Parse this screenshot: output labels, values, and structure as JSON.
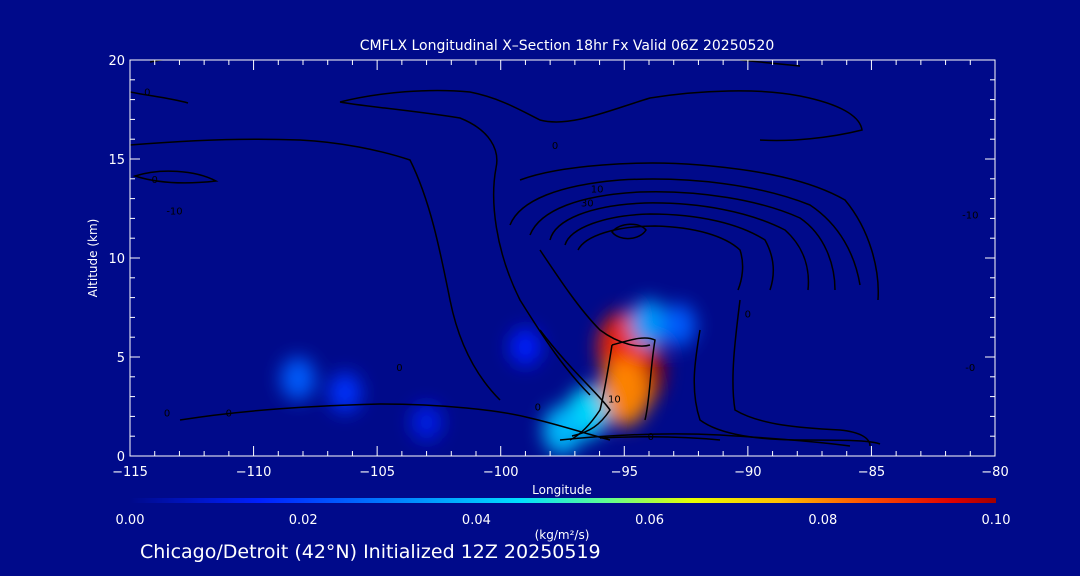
{
  "chart_data": {
    "type": "heatmap",
    "title": "CMFLX Longitudinal X–Section 18hr  Fx Valid 06Z 20250520",
    "xlabel": "Longitude",
    "ylabel": "Altitude (km)",
    "xlim": [
      -115,
      -80
    ],
    "ylim": [
      0,
      20
    ],
    "x_ticks": [
      -115,
      -110,
      -105,
      -100,
      -95,
      -90,
      -85,
      -80
    ],
    "x_tick_labels": [
      "−115",
      "−110",
      "−105",
      "−100",
      "−95",
      "−90",
      "−85",
      "−80"
    ],
    "y_ticks": [
      0,
      5,
      10,
      15,
      20
    ],
    "y_tick_labels": [
      "0",
      "5",
      "10",
      "15",
      "20"
    ],
    "colorbar": {
      "min": 0.0,
      "max": 0.1,
      "ticks": [
        0.0,
        0.02,
        0.04,
        0.06,
        0.08,
        0.1
      ],
      "tick_labels": [
        "0.00",
        "0.02",
        "0.04",
        "0.06",
        "0.08",
        "0.10"
      ],
      "units": "(kg/m²/s)"
    },
    "flux_maxima": [
      {
        "lon": -94.5,
        "alt": 4.3,
        "value": 0.1
      },
      {
        "lon": -95.0,
        "alt": 5.5,
        "value": 0.09
      },
      {
        "lon": -95.0,
        "alt": 3.2,
        "value": 0.08
      },
      {
        "lon": -94.0,
        "alt": 6.7,
        "value": 0.035
      },
      {
        "lon": -92.8,
        "alt": 6.6,
        "value": 0.025
      },
      {
        "lon": -96.5,
        "alt": 2.2,
        "value": 0.045
      },
      {
        "lon": -97.5,
        "alt": 1.3,
        "value": 0.04
      },
      {
        "lon": -99.0,
        "alt": 5.5,
        "value": 0.015
      },
      {
        "lon": -108.2,
        "alt": 3.9,
        "value": 0.025
      },
      {
        "lon": -106.3,
        "alt": 3.2,
        "value": 0.018
      },
      {
        "lon": -103.0,
        "alt": 1.7,
        "value": 0.012
      }
    ],
    "contour_labels": [
      {
        "text": "0",
        "lon": -114.3,
        "alt": 18.2
      },
      {
        "text": "0",
        "lon": -114.0,
        "alt": 13.8
      },
      {
        "text": "-10",
        "lon": -113.2,
        "alt": 12.2
      },
      {
        "text": "0",
        "lon": -113.5,
        "alt": 2.0
      },
      {
        "text": "0",
        "lon": -111.0,
        "alt": 2.0
      },
      {
        "text": "0",
        "lon": -97.8,
        "alt": 15.5
      },
      {
        "text": "10",
        "lon": -96.1,
        "alt": 13.3
      },
      {
        "text": "30",
        "lon": -96.5,
        "alt": 12.6
      },
      {
        "text": "0",
        "lon": -104.1,
        "alt": 4.3
      },
      {
        "text": "10",
        "lon": -95.4,
        "alt": 2.7
      },
      {
        "text": "0",
        "lon": -98.5,
        "alt": 2.3
      },
      {
        "text": "-0",
        "lon": -94.0,
        "alt": 0.8
      },
      {
        "text": "0",
        "lon": -90.0,
        "alt": 7.0
      },
      {
        "text": "-10",
        "lon": -81.0,
        "alt": 12.0
      },
      {
        "text": "-0",
        "lon": -81.0,
        "alt": 4.3
      }
    ]
  },
  "footer": {
    "location_text": "Chicago/Detroit (42°N) Initialized 12Z 20250519"
  }
}
